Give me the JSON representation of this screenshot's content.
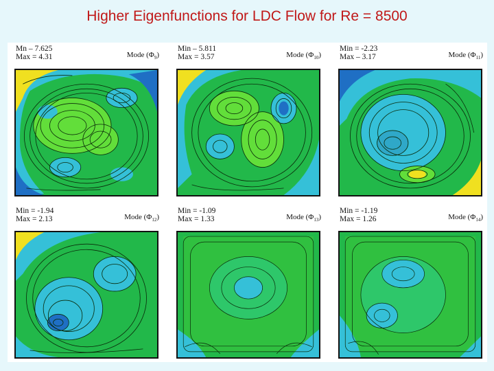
{
  "slide": {
    "title": "Higher Eigenfunctions for LDC Flow for Re = 8500"
  },
  "colors": {
    "title": "#c01818",
    "background": "#e6f7fb",
    "field_green": "#22b84a",
    "field_light": "#62de3a",
    "field_cyan": "#35c0d8",
    "field_blue": "#1f6fc4",
    "field_yellow": "#f0e020",
    "contour": "#0a2a0a"
  },
  "panels": [
    {
      "min": "Mn – 7.625",
      "max": "Max = 4.31",
      "mode_prefix": "Mode (Φ",
      "mode_index": "9",
      "mode_suffix": ")",
      "icon": "contour-plot-icon"
    },
    {
      "min": "Min – 5.811",
      "max": "Max = 3.57",
      "mode_prefix": "Mode (Φ",
      "mode_index": "10",
      "mode_suffix": ")",
      "icon": "contour-plot-icon"
    },
    {
      "min": "Min = -2.23",
      "max": "Max – 3.17",
      "mode_prefix": "Mode (Φ",
      "mode_index": "11",
      "mode_suffix": ")",
      "icon": "contour-plot-icon"
    },
    {
      "min": "Min = -1.94",
      "max": "Max = 2.13",
      "mode_prefix": "Mode (Φ",
      "mode_index": "12",
      "mode_suffix": ")",
      "icon": "contour-plot-icon"
    },
    {
      "min": "Min = -1.09",
      "max": "Max = 1.33",
      "mode_prefix": "Mode (Φ",
      "mode_index": "13",
      "mode_suffix": ")",
      "icon": "contour-plot-icon"
    },
    {
      "min": "Min = -1.19",
      "max": "Max = 1.26",
      "mode_prefix": "Mode (Φ",
      "mode_index": "14",
      "mode_suffix": ")",
      "icon": "contour-plot-icon"
    }
  ]
}
